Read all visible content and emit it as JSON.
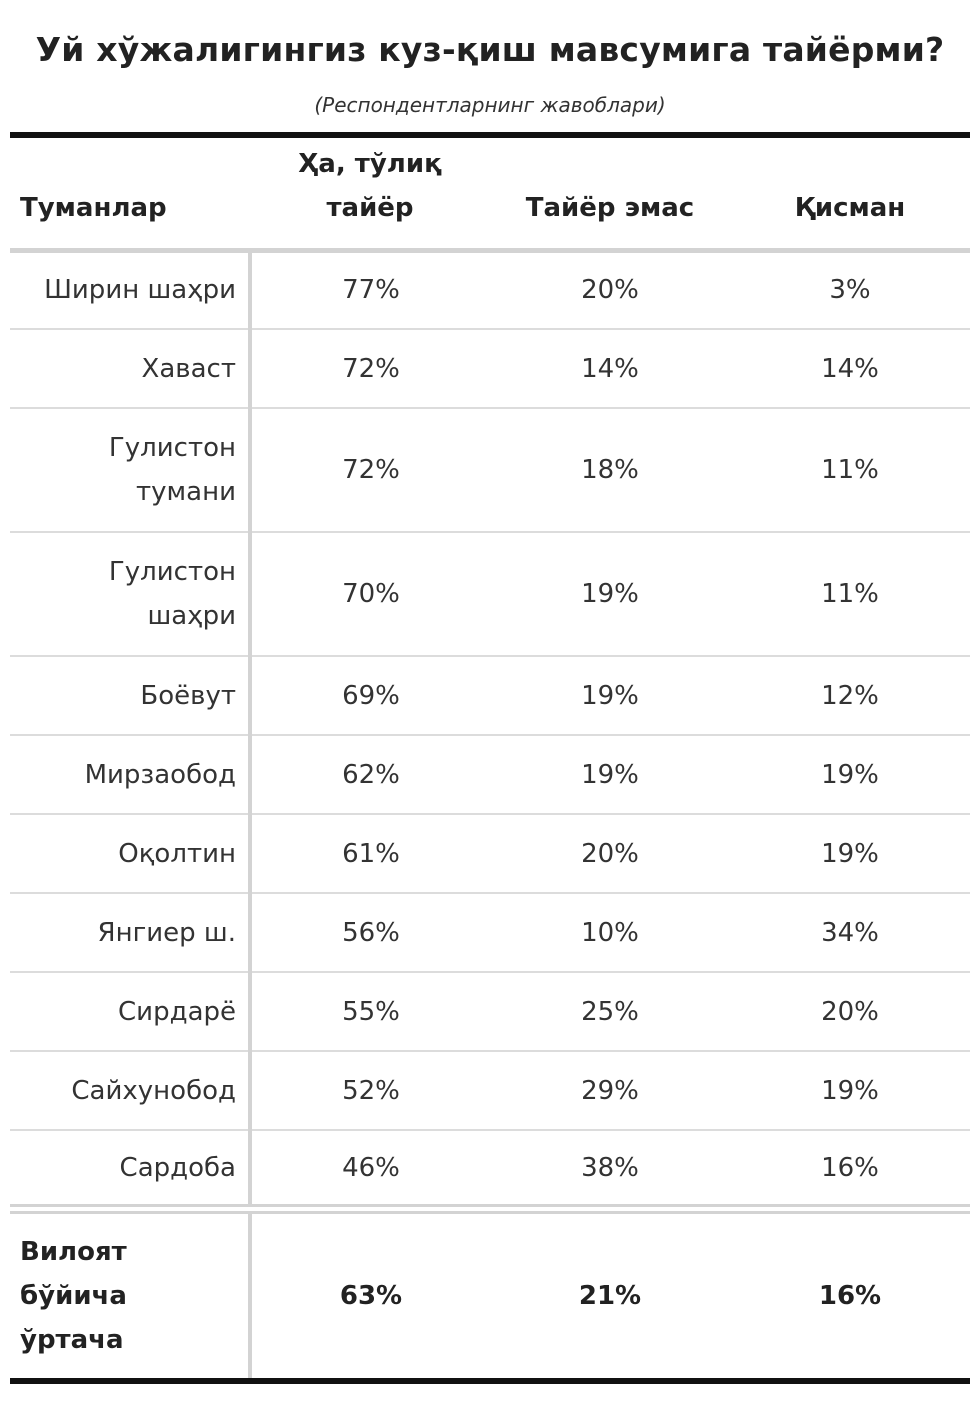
{
  "title": "Уй хўжалигингиз куз-қиш мавсумига тайёрми?",
  "subtitle": "(Респондентларнинг жавоблари)",
  "table": {
    "headers": {
      "district": "Туманлар",
      "yes_line1": "Ҳа, тўлиқ",
      "yes_line2": "тайёр",
      "not_ready": "Тайёр эмас",
      "partial": "Қисман"
    },
    "rows": [
      {
        "district": "Ширин шаҳри",
        "yes": "77%",
        "not_ready": "20%",
        "partial": "3%"
      },
      {
        "district": "Хаваст",
        "yes": "72%",
        "not_ready": "14%",
        "partial": "14%"
      },
      {
        "district": "Гулистон тумани",
        "yes": "72%",
        "not_ready": "18%",
        "partial": "11%"
      },
      {
        "district": "Гулистон шаҳри",
        "yes": "70%",
        "not_ready": "19%",
        "partial": "11%"
      },
      {
        "district": "Боёвут",
        "yes": "69%",
        "not_ready": "19%",
        "partial": "12%"
      },
      {
        "district": "Мирзаобод",
        "yes": "62%",
        "not_ready": "19%",
        "partial": "19%"
      },
      {
        "district": "Оқолтин",
        "yes": "61%",
        "not_ready": "20%",
        "partial": "19%"
      },
      {
        "district": "Янгиер ш.",
        "yes": "56%",
        "not_ready": "10%",
        "partial": "34%"
      },
      {
        "district": "Сирдарё",
        "yes": "55%",
        "not_ready": "25%",
        "partial": "20%"
      },
      {
        "district": "Сайхунобод",
        "yes": "52%",
        "not_ready": "29%",
        "partial": "19%"
      },
      {
        "district": "Сардоба",
        "yes": "46%",
        "not_ready": "38%",
        "partial": "16%"
      }
    ],
    "footer": {
      "label_line1": "Вилоят",
      "label_line2": "бўйича",
      "label_line3": "ўртача",
      "yes": "63%",
      "not_ready": "21%",
      "partial": "16%"
    }
  }
}
